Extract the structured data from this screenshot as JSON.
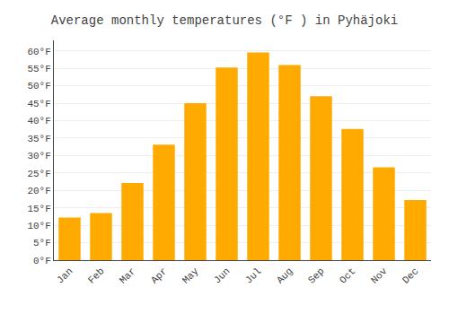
{
  "chart_data": {
    "type": "bar",
    "title": "Average monthly temperatures (°F ) in Pyhäjoki",
    "categories": [
      "Jan",
      "Feb",
      "Mar",
      "Apr",
      "May",
      "Jun",
      "Jul",
      "Aug",
      "Sep",
      "Oct",
      "Nov",
      "Dec"
    ],
    "values": [
      12.2,
      13.5,
      22.1,
      33.1,
      45.0,
      55.2,
      59.5,
      55.9,
      47.0,
      37.6,
      26.6,
      17.2
    ],
    "color": "#FFAA00",
    "ylim": [
      0,
      63
    ],
    "yticks": [
      {
        "value": 0,
        "label": "0°F"
      },
      {
        "value": 5,
        "label": "5°F"
      },
      {
        "value": 10,
        "label": "10°F"
      },
      {
        "value": 15,
        "label": "15°F"
      },
      {
        "value": 20,
        "label": "20°F"
      },
      {
        "value": 25,
        "label": "25°F"
      },
      {
        "value": 30,
        "label": "30°F"
      },
      {
        "value": 35,
        "label": "35°F"
      },
      {
        "value": 40,
        "label": "40°F"
      },
      {
        "value": 45,
        "label": "45°F"
      },
      {
        "value": 50,
        "label": "50°F"
      },
      {
        "value": 55,
        "label": "55°F"
      },
      {
        "value": 60,
        "label": "60°F"
      }
    ],
    "grid": true
  }
}
